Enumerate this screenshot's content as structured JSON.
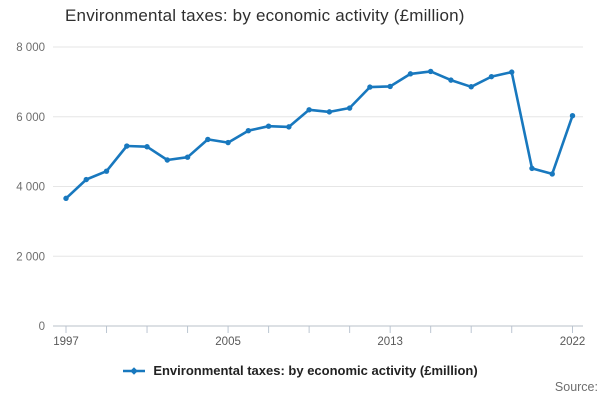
{
  "title": "Environmental taxes: by economic activity (£million)",
  "legend": {
    "label": "Environmental taxes: by economic activity (£million)"
  },
  "source_label": "Source:",
  "colors": {
    "line": "#1878be",
    "marker": "#1878be",
    "grid": "#e6e6e6",
    "axis": "#b9c0ca",
    "tick": "#bcc6d2",
    "y_label": "#6e6e6e",
    "x_label": "#595959",
    "title": "#2f2f2f",
    "legend_text": "#222222",
    "source": "#6e6e6e"
  },
  "chart_data": {
    "type": "line",
    "title": "Environmental taxes: by economic activity (£million)",
    "xlabel": "",
    "ylabel": "",
    "x": [
      1997,
      1998,
      1999,
      2000,
      2001,
      2002,
      2003,
      2004,
      2005,
      2006,
      2007,
      2008,
      2009,
      2010,
      2011,
      2012,
      2013,
      2014,
      2015,
      2016,
      2017,
      2018,
      2019,
      2020,
      2021,
      2022
    ],
    "series": [
      {
        "name": "Environmental taxes: by economic activity (£million)",
        "values": [
          3660,
          4200,
          4440,
          5160,
          5140,
          4760,
          4840,
          5350,
          5260,
          5600,
          5730,
          5710,
          6200,
          6140,
          6250,
          6850,
          6870,
          7230,
          7300,
          7050,
          6860,
          7150,
          7280,
          4520,
          4360,
          6030
        ]
      }
    ],
    "xlim": [
      1997,
      2022
    ],
    "ylim": [
      0,
      8000
    ],
    "ytick_values": [
      0,
      2000,
      4000,
      6000,
      8000
    ],
    "ytick_labels": [
      "0",
      "2 000",
      "4 000",
      "6 000",
      "8 000"
    ],
    "xtick_years": [
      1997,
      1999,
      2001,
      2003,
      2005,
      2007,
      2009,
      2011,
      2013,
      2015,
      2017,
      2019,
      2022
    ],
    "xtick_label_years": [
      1997,
      2005,
      2013,
      2022
    ],
    "xtick_label_texts": [
      "1997",
      "2005",
      "2013",
      "2022"
    ],
    "grid": "horizontal",
    "legend_position": "bottom"
  }
}
